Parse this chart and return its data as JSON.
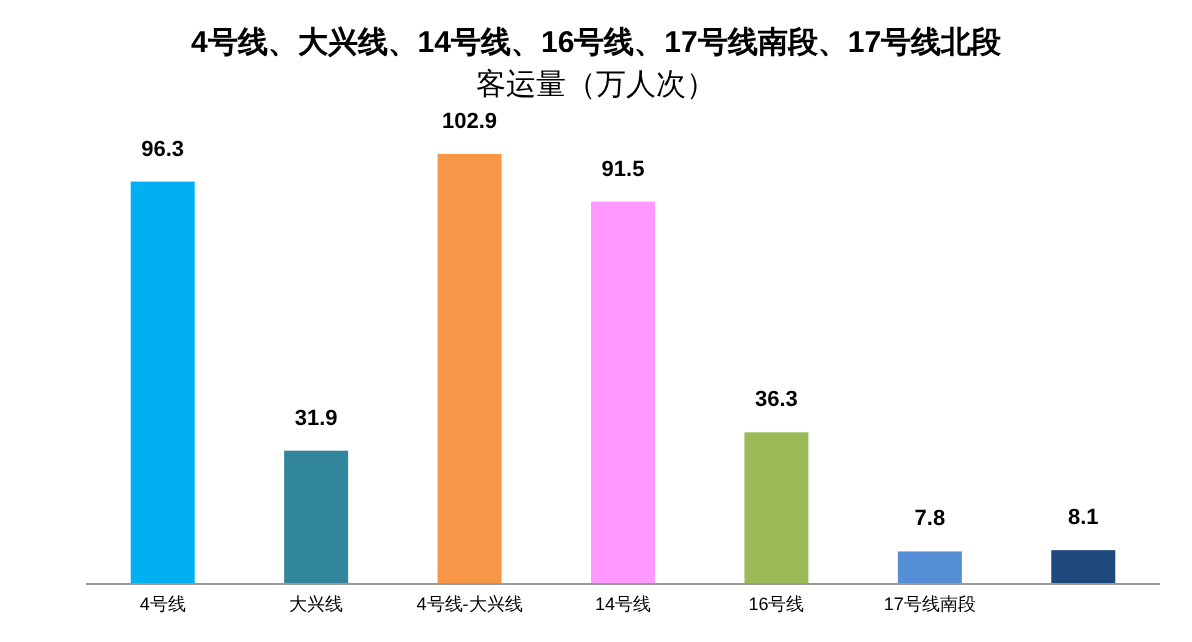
{
  "chart_data": {
    "type": "bar",
    "title": "4号线、大兴线、14号线、16号线、17号线南段、17号线北段",
    "subtitle": "客运量（万人次）",
    "categories": [
      "4号线",
      "大兴线",
      "4号线-大兴线",
      "14号线",
      "16号线",
      "17号线南段",
      null
    ],
    "values": [
      96.3,
      31.9,
      102.9,
      91.5,
      36.3,
      7.8,
      8.1
    ],
    "colors": [
      "#00b0f0",
      "#31859c",
      "#f79646",
      "#ff99ff",
      "#9bbb59",
      "#558ed5",
      "#1f497d"
    ],
    "data_labels": true
  }
}
